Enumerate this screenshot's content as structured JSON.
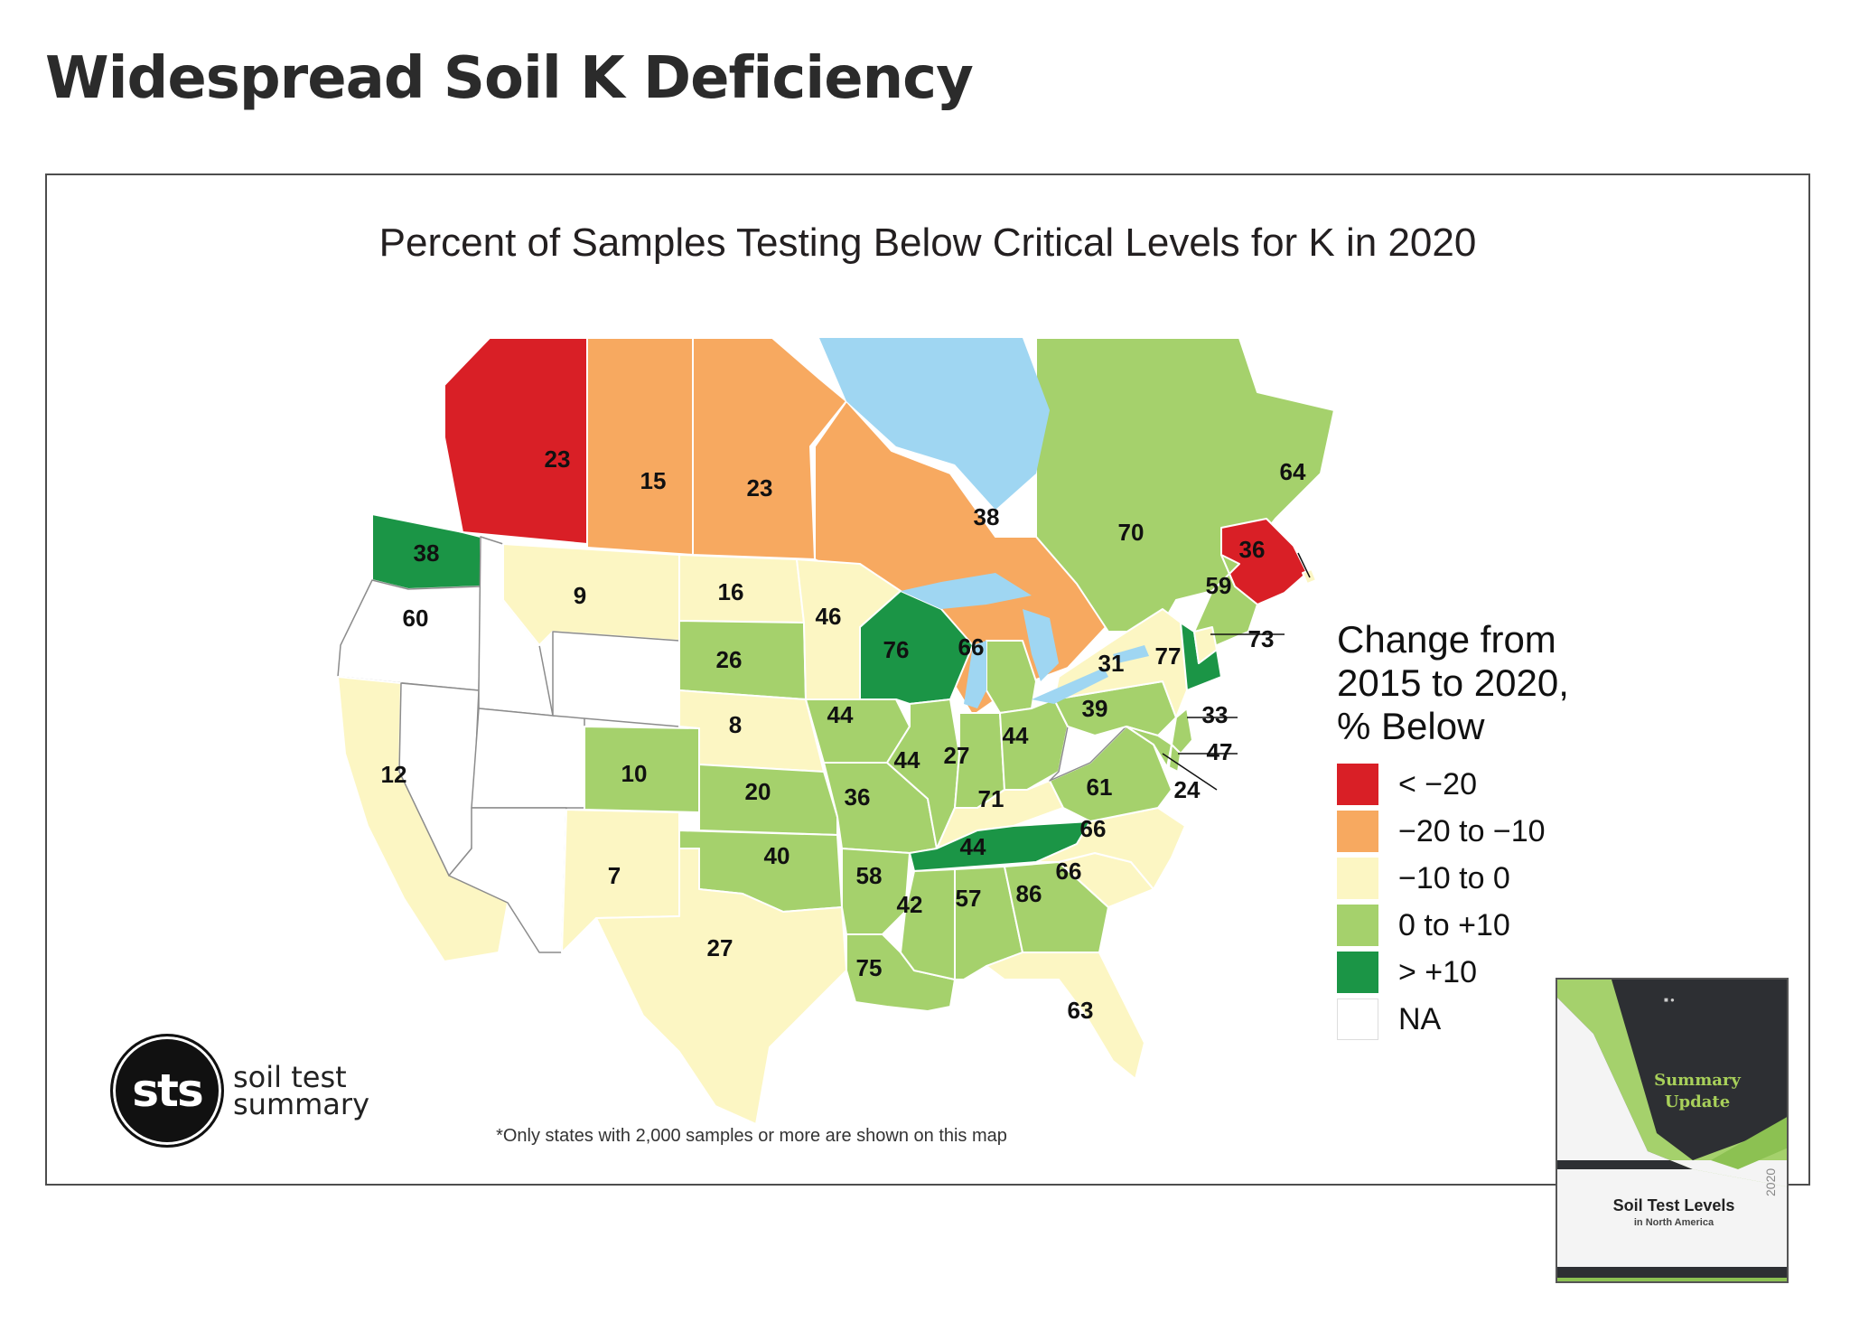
{
  "page": {
    "title": "Widespread Soil K Deficiency"
  },
  "map": {
    "title": "Percent of Samples Testing Below Critical Levels for K in 2020",
    "footnote": "*Only states with 2,000 samples or more are shown on this map",
    "colors": {
      "lt_neg20": "#d91f26",
      "neg20_to_neg10": "#f7a960",
      "neg10_to_0": "#fcf6c3",
      "zero_to_pos10": "#a5d16c",
      "gt_pos10": "#1b9546",
      "na": "#ffffff",
      "water": "#9fd6f2"
    },
    "legend": {
      "title_line1": "Change from",
      "title_line2": "2015 to 2020,",
      "title_line3": "% Below",
      "items": [
        {
          "label": "< −20",
          "color": "#d91f26"
        },
        {
          "label": "−20 to −10",
          "color": "#f7a960"
        },
        {
          "label": "−10 to 0",
          "color": "#fcf6c3"
        },
        {
          "label": "0 to +10",
          "color": "#a5d16c"
        },
        {
          "label": "> +10",
          "color": "#1b9546"
        },
        {
          "label": "NA",
          "color": "#ffffff"
        }
      ]
    },
    "values": {
      "AB": "23",
      "SK": "15",
      "MB": "23",
      "ON": "38",
      "QC": "70",
      "NB": "59",
      "NS": "36",
      "PE": "64",
      "WA": "38",
      "OR": "60",
      "CA": "12",
      "MT": "9",
      "ND": "16",
      "SD": "26",
      "NE": "8",
      "CO": "10",
      "NM": "7",
      "KS": "20",
      "OK": "40",
      "TX": "27",
      "MN": "46",
      "IA": "44",
      "MO": "36",
      "AR": "58",
      "LA": "75",
      "WI": "76",
      "IL": "44",
      "MI": "66",
      "IN": "27",
      "OH": "44",
      "KY": "71",
      "TN": "44",
      "MS": "42",
      "AL": "57",
      "GA": "86",
      "FL": "63",
      "SC": "66",
      "NC": "66",
      "VA": "61",
      "PA": "39",
      "NY": "31",
      "VT": "77",
      "NH": "73",
      "NJ": "33",
      "DE": "47",
      "MD": "24"
    }
  },
  "branding": {
    "logo_letters": "sts",
    "logo_line1": "soil test",
    "logo_line2": "summary"
  },
  "cover": {
    "summary_line1": "Summary",
    "summary_line2": "Update",
    "title": "Soil Test Levels",
    "subtitle": "in North America",
    "year": "2020"
  }
}
